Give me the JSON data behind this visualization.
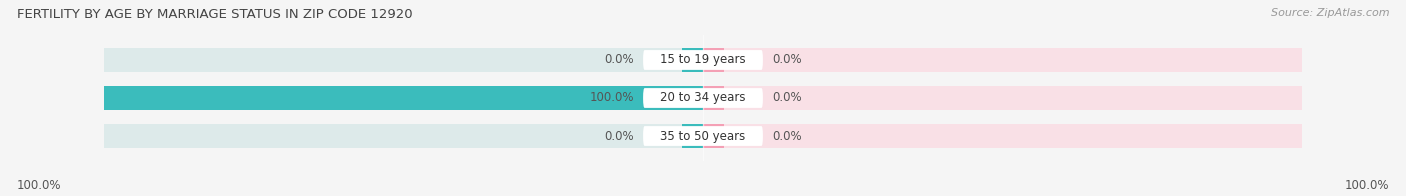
{
  "title": "FERTILITY BY AGE BY MARRIAGE STATUS IN ZIP CODE 12920",
  "source": "Source: ZipAtlas.com",
  "categories": [
    "15 to 19 years",
    "20 to 34 years",
    "35 to 50 years"
  ],
  "married": [
    0.0,
    100.0,
    0.0
  ],
  "unmarried": [
    0.0,
    0.0,
    0.0
  ],
  "married_color": "#3bbcbc",
  "unmarried_color": "#f4a0b5",
  "bg_bar_color_left": "#ddeaea",
  "bg_bar_color_right": "#f9e0e6",
  "center_white": "#ffffff",
  "bar_height": 0.62,
  "max_val": 100.0,
  "min_segment": 3.5,
  "title_fontsize": 9.5,
  "source_fontsize": 8,
  "label_fontsize": 8.5,
  "cat_fontsize": 8.5,
  "legend_fontsize": 9,
  "axis_label_left": "100.0%",
  "axis_label_right": "100.0%",
  "background_color": "#f5f5f5"
}
